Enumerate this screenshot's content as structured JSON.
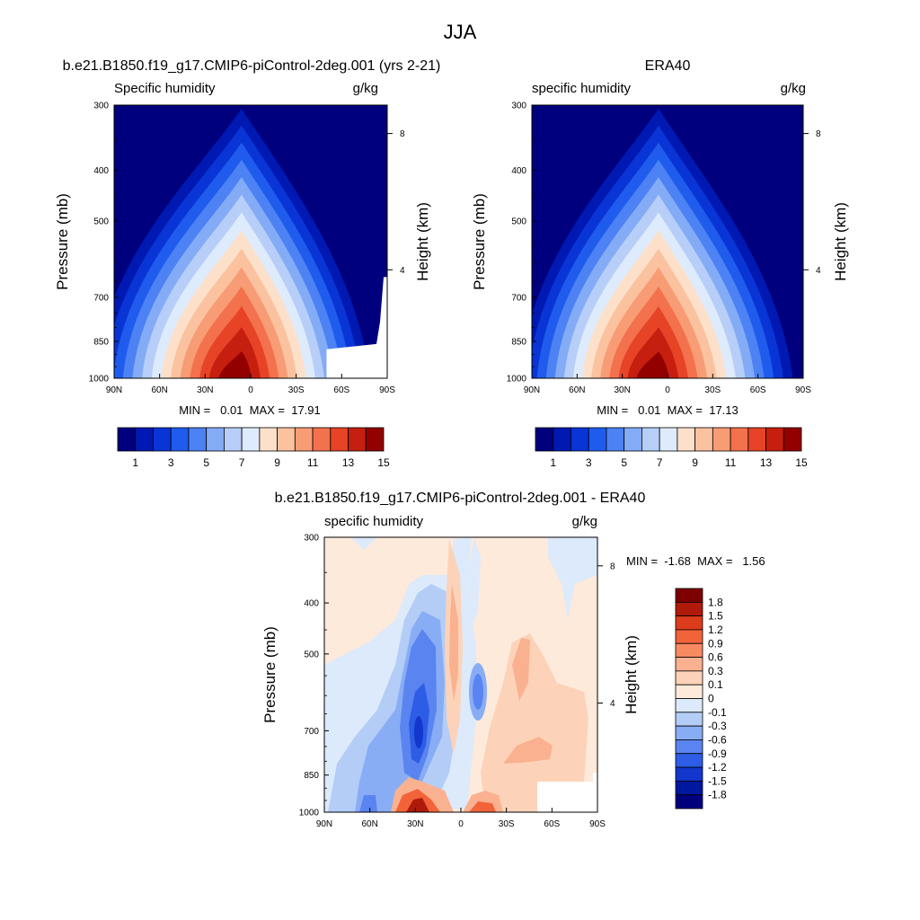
{
  "figure": {
    "title": "JJA"
  },
  "chart_data": [
    {
      "type": "heatmap",
      "title": "b.e21.B1850.f19_g17.CMIP6-piControl-2deg.001 (yrs 2-21)",
      "left_label": "Specific humidity",
      "right_label": "g/kg",
      "xlabel": "",
      "ylabel": "Pressure (mb)",
      "ylabel_right": "Height (km)",
      "x_ticks": [
        "90N",
        "60N",
        "30N",
        "0",
        "30S",
        "60S",
        "90S"
      ],
      "y_ticks": [
        "300",
        "400",
        "500",
        "700",
        "850",
        "1000"
      ],
      "y_right_ticks": [
        "8",
        "4"
      ],
      "ylim": [
        1000,
        300
      ],
      "stats": "MIN =   0.01  MAX =  17.91",
      "min": 0.01,
      "max": 17.91,
      "colorbar_labels": [
        "1",
        "3",
        "5",
        "7",
        "9",
        "11",
        "13",
        "15"
      ],
      "peak_latitude": "10N",
      "peak_value": 17.91
    },
    {
      "type": "heatmap",
      "title": "ERA40",
      "left_label": "specific humidity",
      "right_label": "g/kg",
      "xlabel": "",
      "ylabel": "Pressure (mb)",
      "ylabel_right": "Height (km)",
      "x_ticks": [
        "90N",
        "60N",
        "30N",
        "0",
        "30S",
        "60S",
        "90S"
      ],
      "y_ticks": [
        "300",
        "400",
        "500",
        "700",
        "850",
        "1000"
      ],
      "y_right_ticks": [
        "8",
        "4"
      ],
      "ylim": [
        1000,
        300
      ],
      "stats": "MIN =   0.01  MAX =  17.13",
      "min": 0.01,
      "max": 17.13,
      "colorbar_labels": [
        "1",
        "3",
        "5",
        "7",
        "9",
        "11",
        "13",
        "15"
      ],
      "peak_latitude": "10N",
      "peak_value": 17.13
    },
    {
      "type": "heatmap",
      "title": "b.e21.B1850.f19_g17.CMIP6-piControl-2deg.001 - ERA40",
      "left_label": "specific humidity",
      "right_label": "g/kg",
      "xlabel": "",
      "ylabel": "Pressure (mb)",
      "ylabel_right": "Height (km)",
      "x_ticks": [
        "90N",
        "60N",
        "30N",
        "0",
        "30S",
        "60S",
        "90S"
      ],
      "y_ticks": [
        "300",
        "400",
        "500",
        "700",
        "850",
        "1000"
      ],
      "y_right_ticks": [
        "8",
        "4"
      ],
      "ylim": [
        1000,
        300
      ],
      "stats": "MIN =  -1.68  MAX =   1.56",
      "min": -1.68,
      "max": 1.56,
      "colorbar_labels": [
        "1.8",
        "1.5",
        "1.2",
        "0.9",
        "0.6",
        "0.3",
        "0.1",
        "0",
        "-0.1",
        "-0.3",
        "-0.6",
        "-0.9",
        "-1.2",
        "-1.5",
        "-1.8"
      ]
    }
  ],
  "colors": {
    "abs_scale": [
      "#00007f",
      "#0019b2",
      "#0a35d6",
      "#1f5ced",
      "#4c82f4",
      "#84abf6",
      "#b7cef8",
      "#deebfc",
      "#fde0c9",
      "#fbc2a0",
      "#f79c75",
      "#f3714d",
      "#e74327",
      "#c61f0f",
      "#930000"
    ],
    "diff_scale": [
      "#7f0000",
      "#b01a0a",
      "#dc3b1c",
      "#f2633a",
      "#f78a60",
      "#fab190",
      "#fcd3b8",
      "#feeadb",
      "#dceafb",
      "#b3cdf7",
      "#89adf5",
      "#5a84ef",
      "#2d5de6",
      "#1337cc",
      "#00189e",
      "#00007f"
    ]
  }
}
